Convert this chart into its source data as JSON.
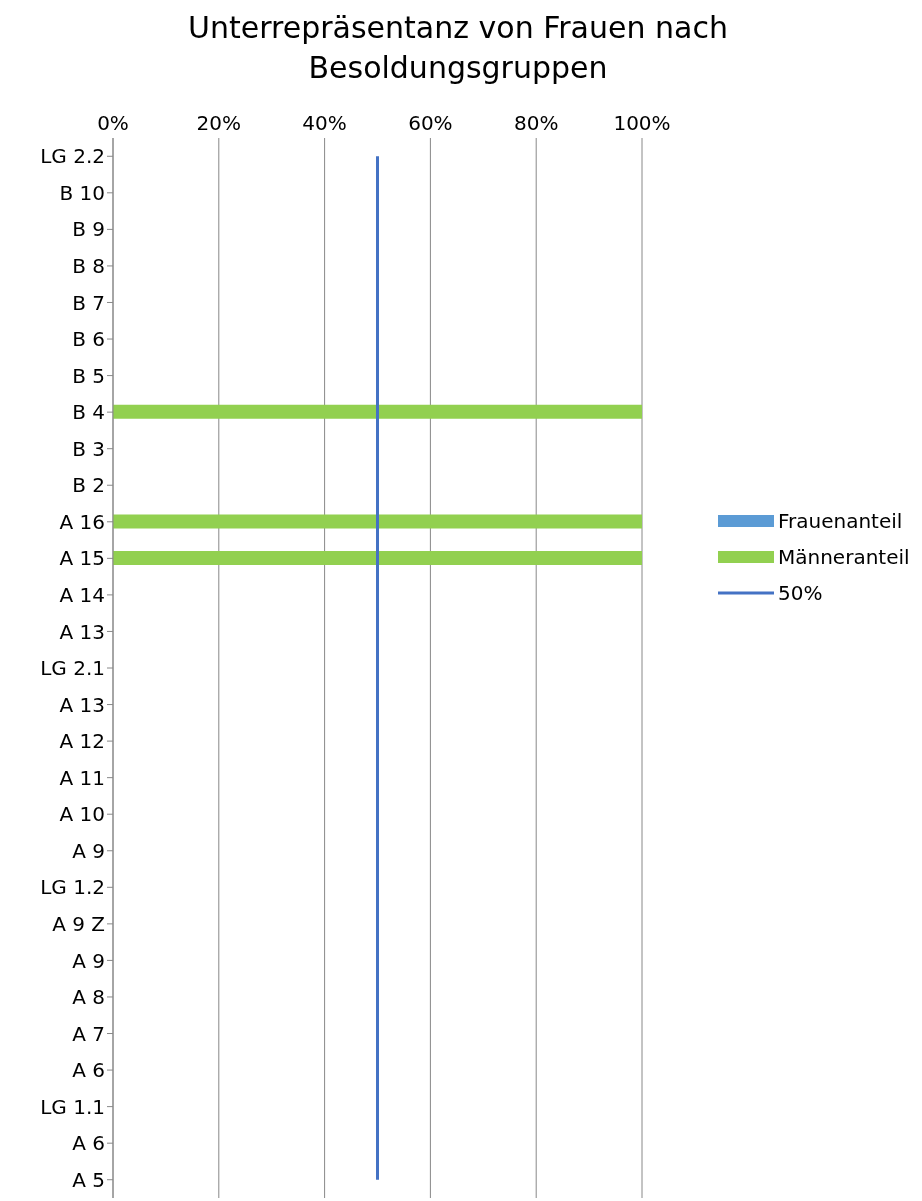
{
  "chart_data": {
    "type": "bar",
    "orientation": "horizontal",
    "stacked": true,
    "title": "Unterrepräsentanz von Frauen nach Besoldungsgruppen",
    "categories": [
      "LG 2.2",
      "B 10",
      "B 9",
      "B 8",
      "B 7",
      "B 6",
      "B 5",
      "B 4",
      "B 3",
      "B 2",
      "A 16",
      "A 15",
      "A 14",
      "A 13",
      "LG 2.1",
      "A 13",
      "A 12",
      "A 11",
      "A 10",
      "A 9",
      "LG 1.2",
      "A 9 Z",
      "A 9",
      "A 8",
      "A 7",
      "A 6",
      "LG 1.1",
      "A 6",
      "A 5"
    ],
    "series": [
      {
        "name": "Frauenanteil",
        "color": "#5b9bd5",
        "values": [
          null,
          null,
          null,
          null,
          null,
          null,
          null,
          0,
          null,
          null,
          0,
          0,
          null,
          null,
          null,
          null,
          null,
          null,
          null,
          null,
          null,
          null,
          null,
          null,
          null,
          null,
          null,
          null,
          null
        ]
      },
      {
        "name": "Männeranteil",
        "color": "#92d050",
        "values": [
          null,
          null,
          null,
          null,
          null,
          null,
          null,
          100,
          null,
          null,
          100,
          100,
          null,
          null,
          null,
          null,
          null,
          null,
          null,
          null,
          null,
          null,
          null,
          null,
          null,
          null,
          null,
          null,
          null
        ]
      },
      {
        "name": "50%",
        "type": "line",
        "color": "#4472c4",
        "values": [
          50,
          50,
          50,
          50,
          50,
          50,
          50,
          50,
          50,
          50,
          50,
          50,
          50,
          50,
          50,
          50,
          50,
          50,
          50,
          50,
          50,
          50,
          50,
          50,
          50,
          50,
          50,
          50,
          50
        ]
      }
    ],
    "xlim": [
      0,
      100
    ],
    "xticks": [
      {
        "value": 0,
        "label": "0%"
      },
      {
        "value": 20,
        "label": "20%"
      },
      {
        "value": 40,
        "label": "40%"
      },
      {
        "value": 60,
        "label": "60%"
      },
      {
        "value": 80,
        "label": "80%"
      },
      {
        "value": 100,
        "label": "100%"
      }
    ],
    "grid": "x",
    "legend": "right",
    "marker": "none"
  }
}
